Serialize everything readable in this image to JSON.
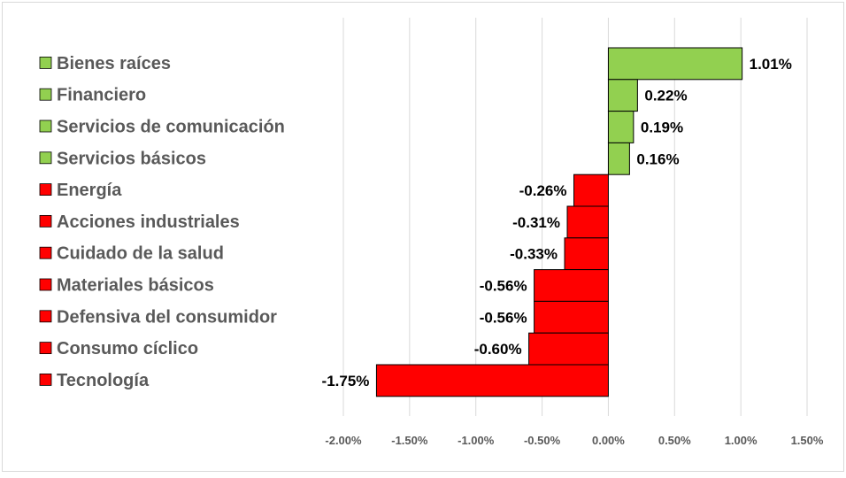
{
  "chart_data": {
    "type": "bar",
    "orientation": "horizontal",
    "title": "",
    "xlabel": "",
    "ylabel": "",
    "xlim": [
      -0.02,
      0.015
    ],
    "x_ticks": [
      -0.02,
      -0.015,
      -0.01,
      -0.005,
      0,
      0.005,
      0.01,
      0.015
    ],
    "x_tick_labels": [
      "-2.00%",
      "-1.50%",
      "-1.00%",
      "-0.50%",
      "0.00%",
      "0.50%",
      "1.00%",
      "1.50%"
    ],
    "grid": "vertical",
    "legend": "left",
    "categories": [
      "Bienes raíces",
      "Financiero",
      "Servicios de comunicación",
      "Servicios básicos",
      "Energía",
      "Acciones industriales",
      "Cuidado de la salud",
      "Materiales básicos",
      "Defensiva del consumidor",
      "Consumo cíclico",
      "Tecnología"
    ],
    "values": [
      0.0101,
      0.0022,
      0.0019,
      0.0016,
      -0.0026,
      -0.0031,
      -0.0033,
      -0.0056,
      -0.0056,
      -0.006,
      -0.0175
    ],
    "value_labels": [
      "1.01%",
      "0.22%",
      "0.19%",
      "0.16%",
      "-0.26%",
      "-0.31%",
      "-0.33%",
      "-0.56%",
      "-0.56%",
      "-0.60%",
      "-1.75%"
    ],
    "colors": {
      "positive": "#92D050",
      "negative": "#FF0000",
      "bar_border": "#000000",
      "grid": "#D9D9D9",
      "axis_text": "#595959"
    }
  }
}
